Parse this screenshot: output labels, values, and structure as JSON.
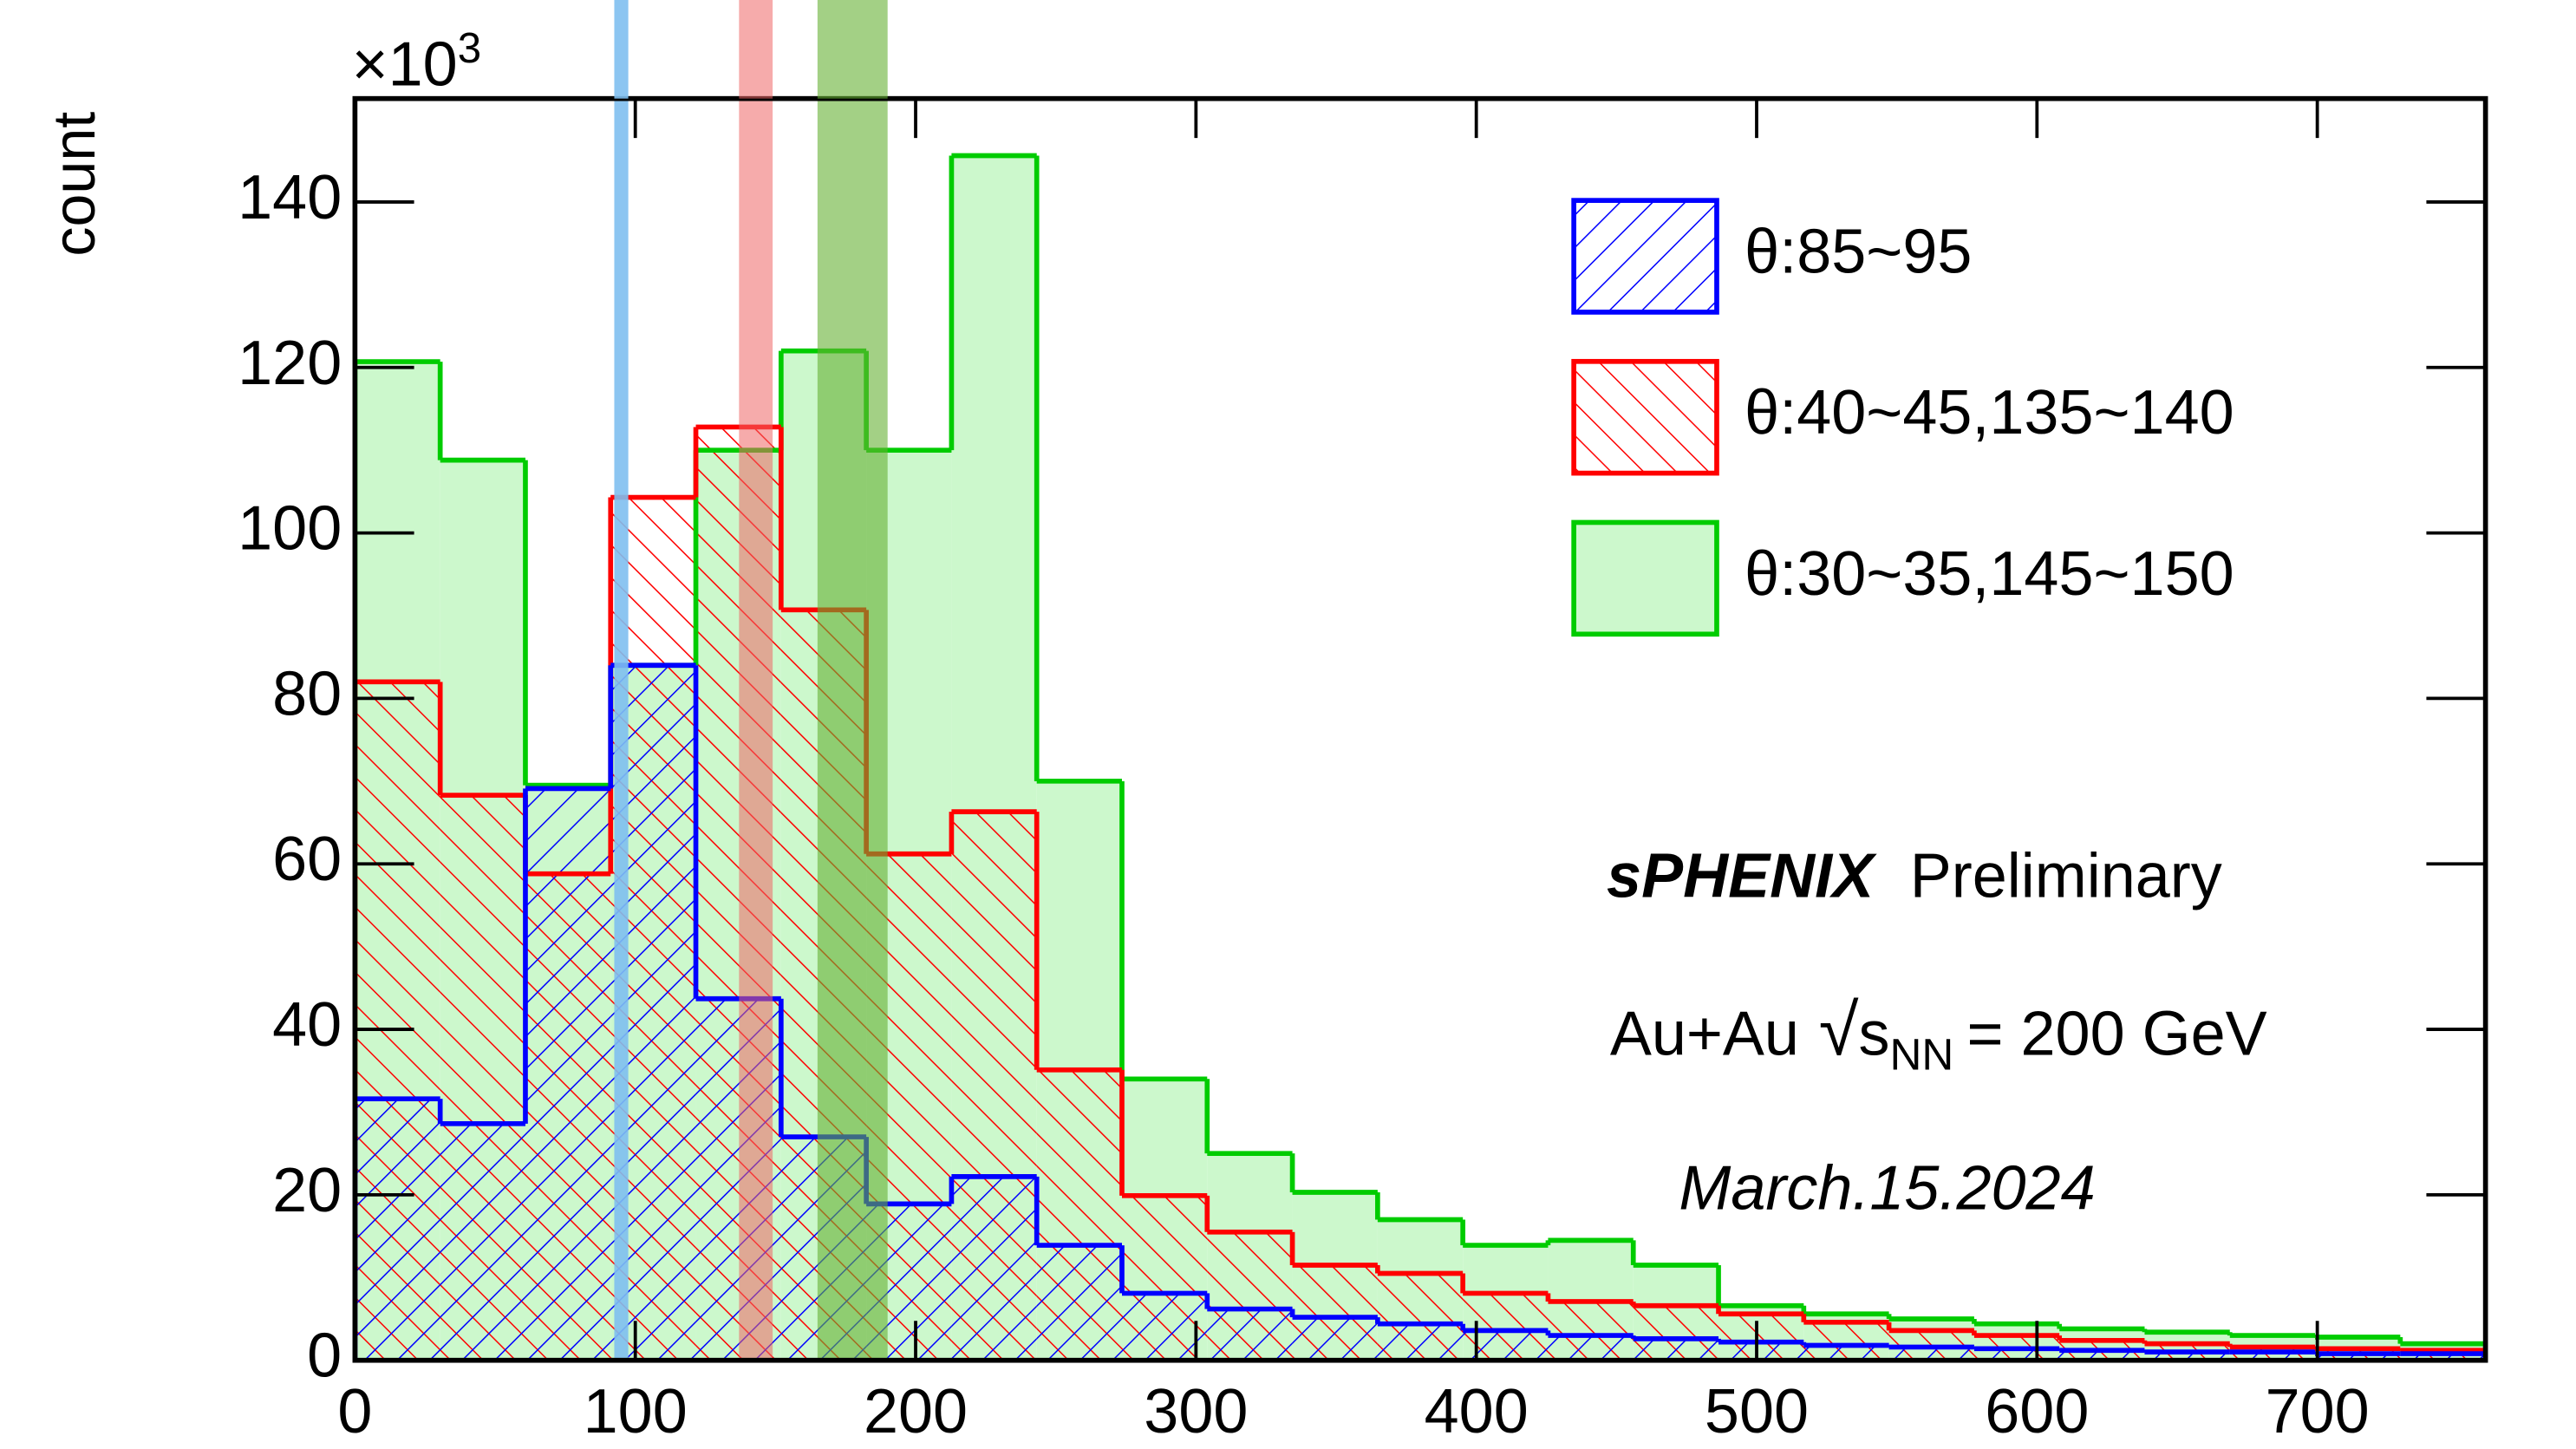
{
  "chart_data": {
    "type": "histogram",
    "y_label": "count",
    "y_multiplier": {
      "base": "×10",
      "exponent": "3"
    },
    "bins": [
      0,
      30.4,
      60.8,
      91.2,
      121.6,
      152,
      182.4,
      212.8,
      243.2,
      273.6,
      304,
      334.4,
      364.8,
      395.2,
      425.6,
      456,
      486.4,
      516.8,
      547.2,
      577.6,
      608,
      638.4,
      668.8,
      699.2,
      729.6,
      760
    ],
    "series": [
      {
        "name": "θ:30~35,145~150",
        "color": "#00cc00",
        "fill": "#ccf8cc",
        "pattern": "solid",
        "values": [
          120.7,
          108.8,
          69.5,
          84,
          110,
          122,
          110,
          145.6,
          70,
          34,
          25,
          20.3,
          17,
          13.9,
          14.5,
          11.5,
          6.6,
          5.6,
          5,
          4.4,
          3.8,
          3.4,
          3,
          2.8,
          2
        ]
      },
      {
        "name": "θ:40~45,135~140",
        "color": "#ff0000",
        "fill": "#ff0000",
        "pattern": "hatch-back",
        "values": [
          82,
          68.3,
          58.8,
          104.3,
          112.8,
          90.7,
          61.2,
          66.3,
          35.1,
          19.9,
          15.5,
          11.5,
          10.5,
          8.1,
          7.1,
          6.6,
          5.6,
          4.6,
          3.6,
          3,
          2.4,
          2,
          1.6,
          1.4,
          1.2
        ]
      },
      {
        "name": "θ:85~95",
        "color": "#0000ff",
        "fill": "#0000ff",
        "pattern": "hatch-forward",
        "values": [
          31.6,
          28.6,
          69.1,
          84,
          43.7,
          27,
          18.9,
          22.2,
          13.9,
          8.1,
          6.2,
          5.2,
          4.4,
          3.6,
          3,
          2.6,
          2.2,
          1.8,
          1.6,
          1.4,
          1.2,
          1,
          1,
          0.8,
          0.8
        ]
      }
    ],
    "legend_order": [
      2,
      1,
      0
    ],
    "legend_position": "top-right",
    "bands": [
      {
        "xrange": [
          92.5,
          97.5
        ],
        "color": "#7fbfef",
        "opacity": 0.9
      },
      {
        "xrange": [
          137,
          149
        ],
        "color": "#ee6666",
        "opacity": 0.55
      },
      {
        "xrange": [
          165,
          190
        ],
        "color": "#66b033",
        "opacity": 0.6
      }
    ],
    "xlim": [
      0,
      760
    ],
    "xticks": [
      0,
      100,
      200,
      300,
      400,
      500,
      600,
      700
    ],
    "ylim": [
      0,
      152.5
    ],
    "yticks": [
      0,
      20,
      40,
      60,
      80,
      100,
      120,
      140
    ],
    "annotations": {
      "experiment": "sPHENIX",
      "status": "Preliminary",
      "system": "Au+Au",
      "energy_symbol": "s",
      "energy_subscript": "NN",
      "energy_value": "= 200 GeV",
      "date": "March.15.2024"
    }
  }
}
